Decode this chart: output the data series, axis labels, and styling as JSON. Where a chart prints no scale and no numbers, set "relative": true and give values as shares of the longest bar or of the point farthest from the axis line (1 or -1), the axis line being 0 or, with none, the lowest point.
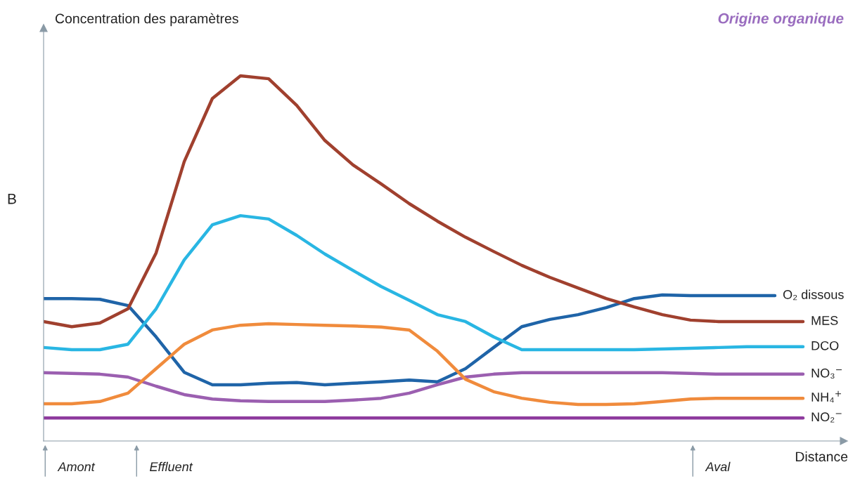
{
  "chart_data": {
    "type": "line",
    "relative": true,
    "title": "Origine organique",
    "ylabel": "Concentration des paramètres",
    "xlabel": "Distance",
    "annotations": [
      "B",
      "Amont",
      "Effluent",
      "Aval"
    ],
    "categories": [
      null,
      null,
      null,
      null,
      null,
      null,
      null,
      null,
      null,
      null,
      null,
      null,
      null,
      null,
      null,
      null,
      null,
      null,
      null,
      null,
      null,
      null,
      null,
      null,
      null,
      null,
      null,
      null
    ],
    "series": [
      {
        "name": "O₂ dissous",
        "color": "#1f64a8",
        "values": [
          0.39,
          0.39,
          0.388,
          0.371,
          0.285,
          0.188,
          0.154,
          0.154,
          0.158,
          0.16,
          0.154,
          0.158,
          0.162,
          0.167,
          0.162,
          0.198,
          0.256,
          0.313,
          0.333,
          0.346,
          0.365,
          0.39,
          0.4,
          0.398,
          0.398,
          0.398,
          0.398,
          null
        ]
      },
      {
        "name": "MES",
        "color": "#a0402e",
        "values": [
          0.327,
          0.313,
          0.323,
          0.362,
          0.515,
          0.765,
          0.938,
          1.0,
          0.992,
          0.919,
          0.823,
          0.756,
          0.704,
          0.65,
          0.602,
          0.558,
          0.519,
          0.481,
          0.448,
          0.419,
          0.39,
          0.367,
          0.346,
          0.331,
          0.327,
          0.327,
          0.327,
          0.327
        ]
      },
      {
        "name": "DCO",
        "color": "#29b6e3",
        "values": [
          0.256,
          0.25,
          0.25,
          0.265,
          0.362,
          0.496,
          0.592,
          0.617,
          0.608,
          0.563,
          0.512,
          0.467,
          0.423,
          0.385,
          0.346,
          0.327,
          0.285,
          0.25,
          0.25,
          0.25,
          0.25,
          0.25,
          0.252,
          0.254,
          0.256,
          0.258,
          0.258,
          0.258
        ]
      },
      {
        "name": "NO₃$^{−}$",
        "color": "#9b5fb0",
        "values": [
          0.187,
          0.185,
          0.183,
          0.175,
          0.15,
          0.127,
          0.115,
          0.11,
          0.108,
          0.108,
          0.108,
          0.112,
          0.117,
          0.131,
          0.154,
          0.175,
          0.183,
          0.187,
          0.187,
          0.187,
          0.187,
          0.187,
          0.187,
          0.185,
          0.183,
          0.183,
          0.183,
          0.183
        ]
      },
      {
        "name": "NH₄$^{+}$",
        "color": "#f08b3c",
        "values": [
          0.102,
          0.102,
          0.108,
          0.131,
          0.198,
          0.265,
          0.304,
          0.317,
          0.321,
          0.319,
          0.317,
          0.315,
          0.312,
          0.304,
          0.246,
          0.169,
          0.135,
          0.117,
          0.106,
          0.1,
          0.1,
          0.102,
          0.108,
          0.115,
          0.117,
          0.117,
          0.117,
          0.117
        ]
      },
      {
        "name": "NO₂$^{−}$",
        "color": "#8e3a9e",
        "values": [
          0.063,
          0.063,
          0.063,
          0.063,
          0.063,
          0.063,
          0.063,
          0.063,
          0.063,
          0.063,
          0.063,
          0.063,
          0.063,
          0.063,
          0.063,
          0.063,
          0.063,
          0.063,
          0.063,
          0.063,
          0.063,
          0.063,
          0.063,
          0.063,
          0.063,
          0.063,
          0.063,
          0.063
        ]
      }
    ],
    "legend": false,
    "marker": "none",
    "line_style": "solid"
  }
}
